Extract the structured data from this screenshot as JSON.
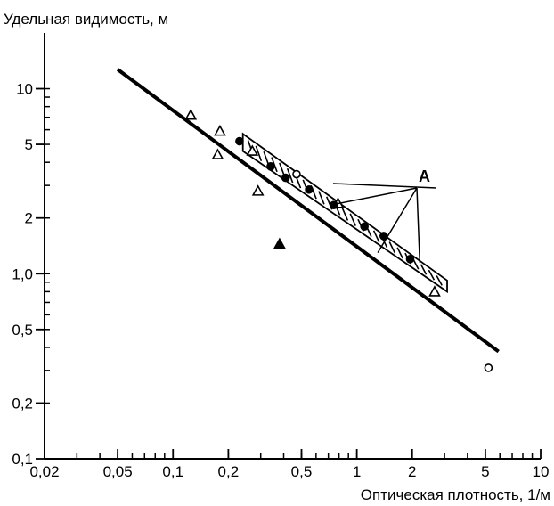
{
  "chart_data": {
    "type": "scatter",
    "title": "",
    "ylabel": "Удельная видимость, м",
    "xlabel": "Оптическая плотность, 1/м",
    "x_scale": "log",
    "y_scale": "log",
    "xlim": [
      0.02,
      10
    ],
    "ylim": [
      0.1,
      20
    ],
    "grid": false,
    "x_ticks": [
      {
        "value": 0.02,
        "label": "0,02"
      },
      {
        "value": 0.05,
        "label": "0,05"
      },
      {
        "value": 0.1,
        "label": "0,1"
      },
      {
        "value": 0.2,
        "label": "0,2"
      },
      {
        "value": 0.5,
        "label": "0,5"
      },
      {
        "value": 1,
        "label": "1"
      },
      {
        "value": 2,
        "label": "2"
      },
      {
        "value": 5,
        "label": "5"
      },
      {
        "value": 10,
        "label": "10"
      }
    ],
    "y_ticks": [
      {
        "value": 0.1,
        "label": "0,1"
      },
      {
        "value": 0.2,
        "label": "0,2"
      },
      {
        "value": 0.5,
        "label": "0,5"
      },
      {
        "value": 1,
        "label": "1,0"
      },
      {
        "value": 2,
        "label": "2"
      },
      {
        "value": 5,
        "label": "5"
      },
      {
        "value": 10,
        "label": "10"
      }
    ],
    "lines": [
      {
        "x": [
          0.05,
          5.9
        ],
        "y": [
          12.7,
          0.38
        ],
        "style": "solid-thick"
      }
    ],
    "band": {
      "x": [
        0.24,
        3.1
      ],
      "y_upper": [
        5.7,
        0.92
      ],
      "y_lower": [
        4.6,
        0.8
      ],
      "style": "hatched"
    },
    "series": [
      {
        "marker": "open-triangle",
        "points": [
          [
            0.125,
            7.2
          ],
          [
            0.18,
            5.9
          ],
          [
            0.175,
            4.4
          ],
          [
            0.29,
            2.8
          ],
          [
            0.27,
            4.6
          ],
          [
            0.79,
            2.4
          ],
          [
            2.65,
            0.8
          ]
        ]
      },
      {
        "marker": "filled-triangle",
        "points": [
          [
            0.38,
            1.45
          ]
        ]
      },
      {
        "marker": "open-circle",
        "points": [
          [
            0.47,
            3.45
          ],
          [
            5.2,
            0.31
          ]
        ]
      },
      {
        "marker": "filled-circle",
        "points": [
          [
            0.23,
            5.2
          ],
          [
            0.34,
            3.8
          ],
          [
            0.41,
            3.3
          ],
          [
            0.55,
            2.85
          ],
          [
            0.75,
            2.35
          ],
          [
            1.1,
            1.8
          ],
          [
            1.4,
            1.6
          ],
          [
            1.95,
            1.2
          ]
        ]
      }
    ],
    "annotations": [
      {
        "text": "A",
        "points_to": [
          [
            0.72,
            2.35
          ],
          [
            1.3,
            1.3
          ],
          [
            2.2,
            1.15
          ]
        ]
      }
    ]
  }
}
